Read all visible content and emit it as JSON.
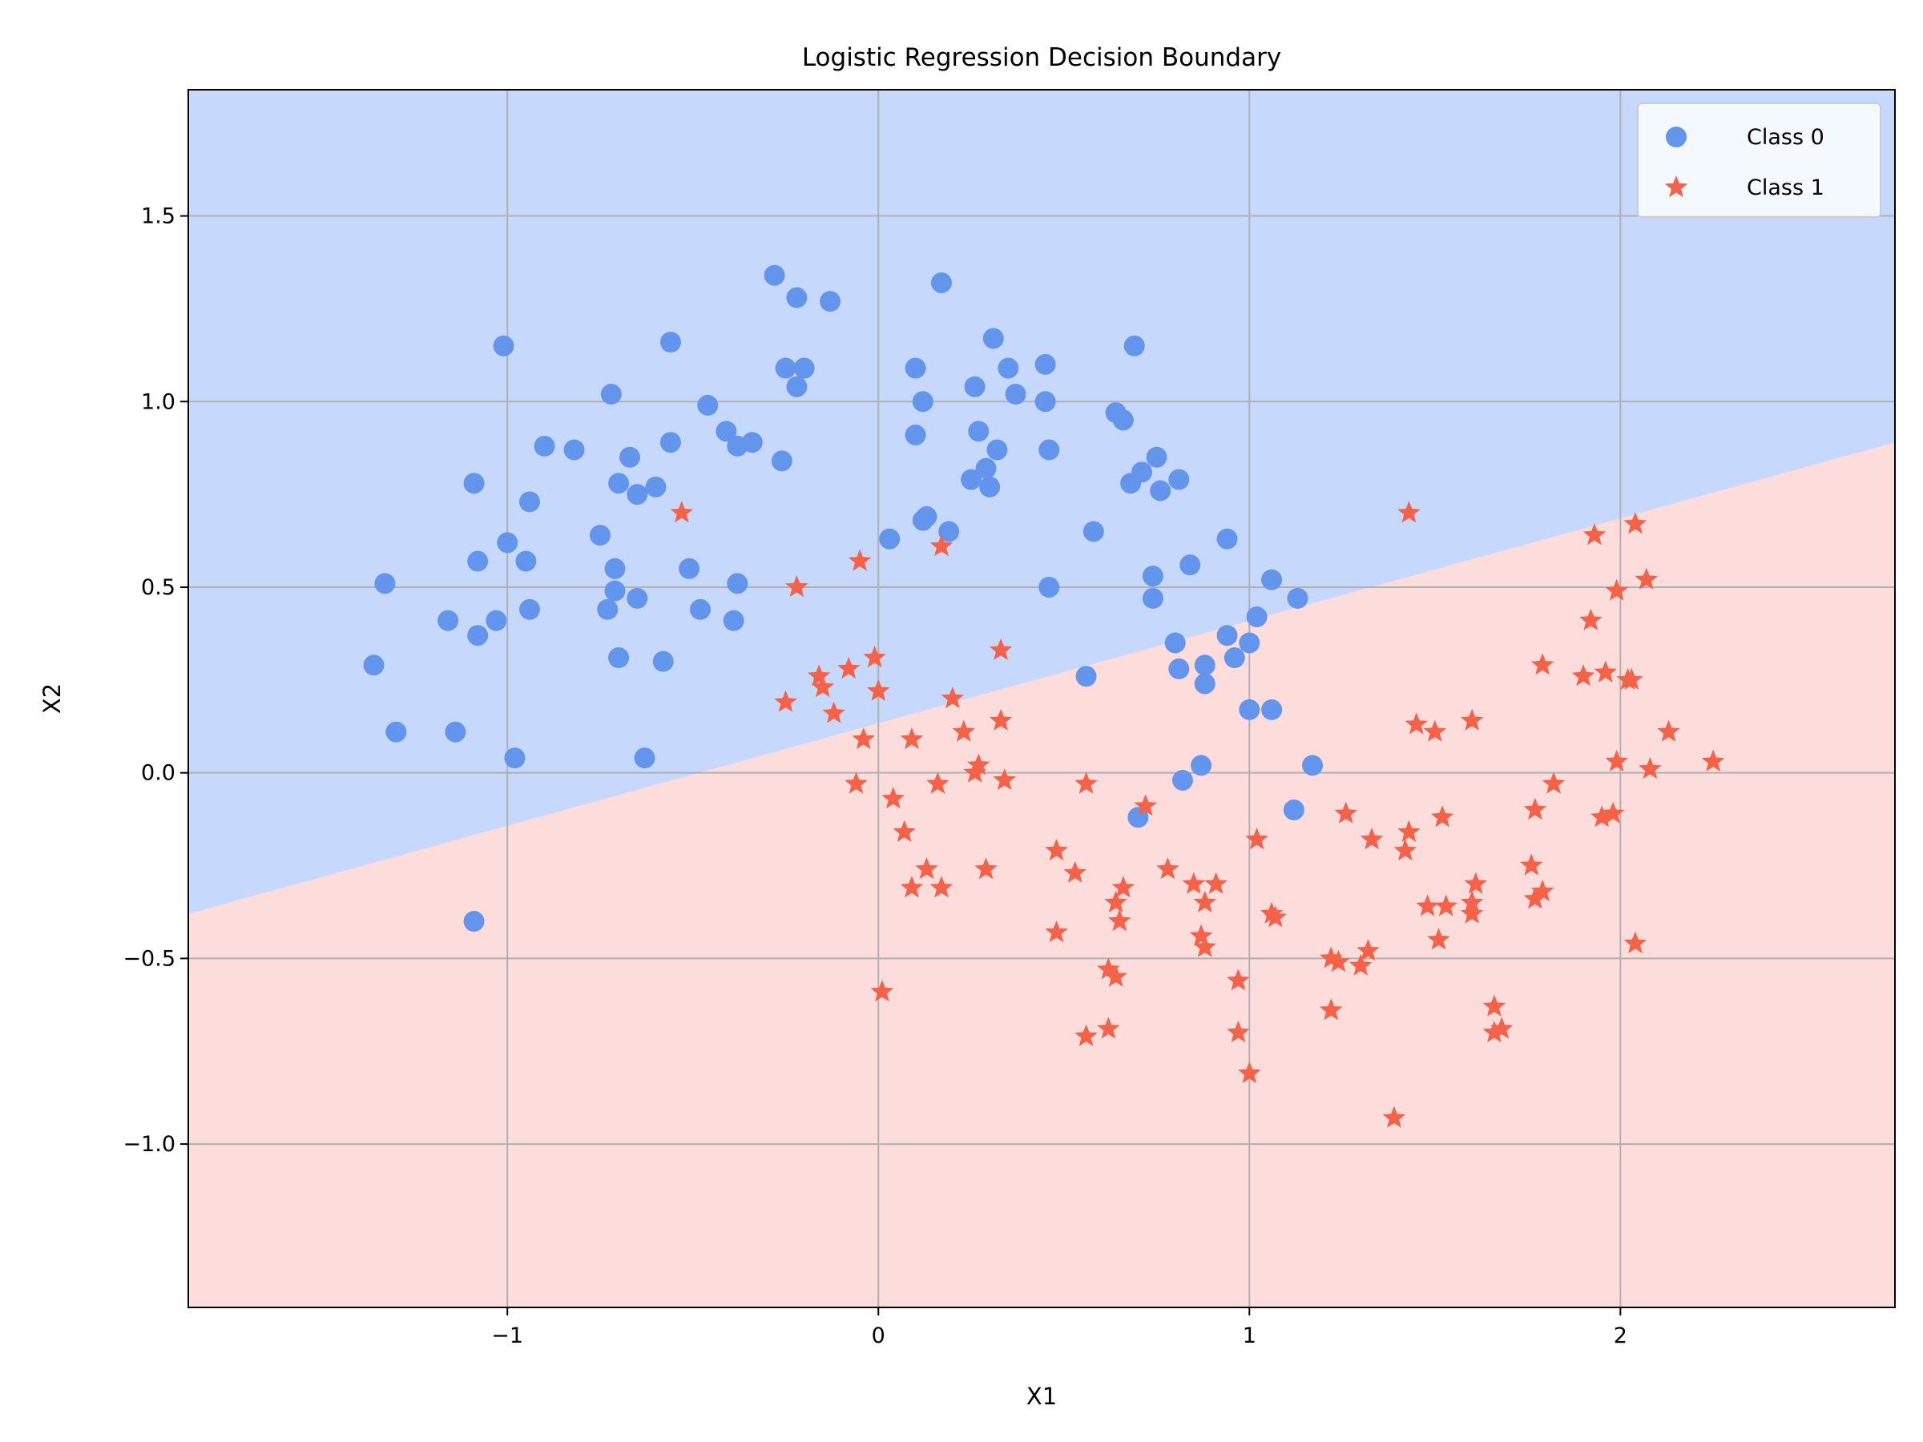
{
  "chart_data": {
    "type": "scatter",
    "title": "Logistic Regression Decision Boundary",
    "xlabel": "X1",
    "ylabel": "X2",
    "xlim": [
      -1.86,
      2.74
    ],
    "ylim": [
      -1.44,
      1.84
    ],
    "grid": true,
    "legend_position": "top-right",
    "xticks": [
      -1,
      0,
      1,
      2
    ],
    "xtick_labels": [
      "−1",
      "0",
      "1",
      "2"
    ],
    "yticks": [
      -1.0,
      -0.5,
      0.0,
      0.5,
      1.0,
      1.5
    ],
    "ytick_labels": [
      "−1.0",
      "−0.5",
      "0.0",
      "0.5",
      "1.0",
      "1.5"
    ],
    "decision_boundary": {
      "x": [
        -1.86,
        2.74
      ],
      "y": [
        -0.38,
        0.89
      ]
    },
    "region_colors": {
      "class_0": "#c6d9fd",
      "class_1": "#fddddc"
    },
    "series": [
      {
        "name": "Class 0",
        "marker": "circle",
        "color": "#6495ed",
        "points": [
          [
            -1.36,
            0.29
          ],
          [
            -1.33,
            0.51
          ],
          [
            -1.3,
            0.11
          ],
          [
            -1.16,
            0.41
          ],
          [
            -1.14,
            0.11
          ],
          [
            -1.09,
            0.78
          ],
          [
            -1.08,
            0.57
          ],
          [
            -1.08,
            0.37
          ],
          [
            -1.03,
            0.41
          ],
          [
            -1.01,
            1.15
          ],
          [
            -1.0,
            0.62
          ],
          [
            -0.98,
            0.04
          ],
          [
            -0.95,
            0.57
          ],
          [
            -0.94,
            0.73
          ],
          [
            -0.94,
            0.44
          ],
          [
            -0.9,
            0.88
          ],
          [
            -0.82,
            0.87
          ],
          [
            -0.75,
            0.64
          ],
          [
            -0.73,
            0.44
          ],
          [
            -0.72,
            1.02
          ],
          [
            -0.71,
            0.55
          ],
          [
            -0.71,
            0.49
          ],
          [
            -0.7,
            0.78
          ],
          [
            -0.7,
            0.31
          ],
          [
            -0.67,
            0.85
          ],
          [
            -0.65,
            0.75
          ],
          [
            -0.65,
            0.47
          ],
          [
            -0.63,
            0.04
          ],
          [
            -0.6,
            0.77
          ],
          [
            -0.58,
            0.3
          ],
          [
            -0.56,
            1.16
          ],
          [
            -0.56,
            0.89
          ],
          [
            -0.51,
            0.55
          ],
          [
            -0.48,
            0.44
          ],
          [
            -0.46,
            0.99
          ],
          [
            -0.41,
            0.92
          ],
          [
            -0.39,
            0.41
          ],
          [
            -0.38,
            0.88
          ],
          [
            -0.38,
            0.51
          ],
          [
            -0.34,
            0.89
          ],
          [
            -0.28,
            1.34
          ],
          [
            -0.26,
            0.84
          ],
          [
            -0.25,
            1.09
          ],
          [
            -0.22,
            1.28
          ],
          [
            -0.22,
            1.04
          ],
          [
            -0.2,
            1.09
          ],
          [
            -0.13,
            1.27
          ],
          [
            0.03,
            0.63
          ],
          [
            0.1,
            1.09
          ],
          [
            0.1,
            0.91
          ],
          [
            0.12,
            1.0
          ],
          [
            0.12,
            0.68
          ],
          [
            0.13,
            0.69
          ],
          [
            0.17,
            1.32
          ],
          [
            0.19,
            0.65
          ],
          [
            0.25,
            0.79
          ],
          [
            0.26,
            1.04
          ],
          [
            0.27,
            0.92
          ],
          [
            0.29,
            0.82
          ],
          [
            0.3,
            0.77
          ],
          [
            0.31,
            1.17
          ],
          [
            0.32,
            0.87
          ],
          [
            0.35,
            1.09
          ],
          [
            0.37,
            1.02
          ],
          [
            0.45,
            1.1
          ],
          [
            0.45,
            1.0
          ],
          [
            0.46,
            0.87
          ],
          [
            0.46,
            0.5
          ],
          [
            0.56,
            0.26
          ],
          [
            0.58,
            0.65
          ],
          [
            0.64,
            0.97
          ],
          [
            0.66,
            0.95
          ],
          [
            0.68,
            0.78
          ],
          [
            0.69,
            1.15
          ],
          [
            0.7,
            -0.12
          ],
          [
            0.71,
            0.81
          ],
          [
            0.74,
            0.53
          ],
          [
            0.74,
            0.47
          ],
          [
            0.75,
            0.85
          ],
          [
            0.76,
            0.76
          ],
          [
            0.81,
            0.79
          ],
          [
            0.8,
            0.35
          ],
          [
            0.81,
            0.28
          ],
          [
            0.82,
            -0.02
          ],
          [
            0.84,
            0.56
          ],
          [
            0.87,
            0.02
          ],
          [
            0.88,
            0.29
          ],
          [
            0.88,
            0.24
          ],
          [
            0.94,
            0.37
          ],
          [
            0.94,
            0.63
          ],
          [
            0.96,
            0.31
          ],
          [
            1.0,
            0.35
          ],
          [
            1.0,
            0.17
          ],
          [
            1.02,
            0.42
          ],
          [
            1.06,
            0.52
          ],
          [
            1.06,
            0.17
          ],
          [
            1.12,
            -0.1
          ],
          [
            1.13,
            0.47
          ],
          [
            1.17,
            0.02
          ],
          [
            -1.09,
            -0.4
          ]
        ]
      },
      {
        "name": "Class 1",
        "marker": "star",
        "color": "#f5624a",
        "points": [
          [
            -0.53,
            0.7
          ],
          [
            -0.25,
            0.19
          ],
          [
            -0.22,
            0.5
          ],
          [
            -0.16,
            0.26
          ],
          [
            -0.15,
            0.23
          ],
          [
            -0.12,
            0.16
          ],
          [
            -0.08,
            0.28
          ],
          [
            -0.06,
            -0.03
          ],
          [
            -0.05,
            0.57
          ],
          [
            -0.04,
            0.09
          ],
          [
            -0.01,
            0.31
          ],
          [
            0.0,
            0.22
          ],
          [
            0.01,
            -0.59
          ],
          [
            0.04,
            -0.07
          ],
          [
            0.07,
            -0.16
          ],
          [
            0.09,
            0.09
          ],
          [
            0.09,
            -0.31
          ],
          [
            0.13,
            -0.26
          ],
          [
            0.16,
            -0.03
          ],
          [
            0.17,
            -0.31
          ],
          [
            0.17,
            0.61
          ],
          [
            0.2,
            0.2
          ],
          [
            0.23,
            0.11
          ],
          [
            0.26,
            0.0
          ],
          [
            0.27,
            0.02
          ],
          [
            0.29,
            -0.26
          ],
          [
            0.33,
            0.33
          ],
          [
            0.33,
            0.14
          ],
          [
            0.34,
            -0.02
          ],
          [
            0.48,
            -0.21
          ],
          [
            0.48,
            -0.43
          ],
          [
            0.53,
            -0.27
          ],
          [
            0.56,
            -0.03
          ],
          [
            0.56,
            -0.71
          ],
          [
            0.62,
            -0.69
          ],
          [
            0.62,
            -0.53
          ],
          [
            0.64,
            -0.55
          ],
          [
            0.64,
            -0.35
          ],
          [
            0.65,
            -0.4
          ],
          [
            0.66,
            -0.31
          ],
          [
            0.72,
            -0.09
          ],
          [
            0.78,
            -0.26
          ],
          [
            0.85,
            -0.3
          ],
          [
            0.87,
            -0.44
          ],
          [
            0.88,
            -0.35
          ],
          [
            0.88,
            -0.47
          ],
          [
            0.91,
            -0.3
          ],
          [
            0.97,
            -0.56
          ],
          [
            0.97,
            -0.7
          ],
          [
            1.0,
            -0.81
          ],
          [
            1.02,
            -0.18
          ],
          [
            1.06,
            -0.38
          ],
          [
            1.07,
            -0.39
          ],
          [
            1.22,
            -0.64
          ],
          [
            1.22,
            -0.5
          ],
          [
            1.24,
            -0.51
          ],
          [
            1.26,
            -0.11
          ],
          [
            1.3,
            -0.52
          ],
          [
            1.32,
            -0.48
          ],
          [
            1.33,
            -0.18
          ],
          [
            1.39,
            -0.93
          ],
          [
            1.42,
            -0.21
          ],
          [
            1.43,
            0.7
          ],
          [
            1.43,
            -0.16
          ],
          [
            1.45,
            0.13
          ],
          [
            1.48,
            -0.36
          ],
          [
            1.5,
            0.11
          ],
          [
            1.51,
            -0.45
          ],
          [
            1.52,
            -0.12
          ],
          [
            1.53,
            -0.36
          ],
          [
            1.6,
            0.14
          ],
          [
            1.6,
            -0.35
          ],
          [
            1.6,
            -0.38
          ],
          [
            1.61,
            -0.3
          ],
          [
            1.66,
            -0.63
          ],
          [
            1.66,
            -0.7
          ],
          [
            1.68,
            -0.69
          ],
          [
            1.76,
            -0.25
          ],
          [
            1.77,
            -0.1
          ],
          [
            1.77,
            -0.34
          ],
          [
            1.79,
            0.29
          ],
          [
            1.79,
            -0.32
          ],
          [
            1.82,
            -0.03
          ],
          [
            1.9,
            0.26
          ],
          [
            1.92,
            0.41
          ],
          [
            1.93,
            0.64
          ],
          [
            1.95,
            -0.12
          ],
          [
            1.96,
            0.27
          ],
          [
            1.98,
            -0.11
          ],
          [
            1.99,
            0.49
          ],
          [
            1.99,
            0.03
          ],
          [
            2.02,
            0.25
          ],
          [
            2.03,
            0.25
          ],
          [
            2.04,
            -0.46
          ],
          [
            2.04,
            0.67
          ],
          [
            2.07,
            0.52
          ],
          [
            2.08,
            0.01
          ],
          [
            2.13,
            0.11
          ],
          [
            2.25,
            0.03
          ]
        ]
      }
    ]
  }
}
